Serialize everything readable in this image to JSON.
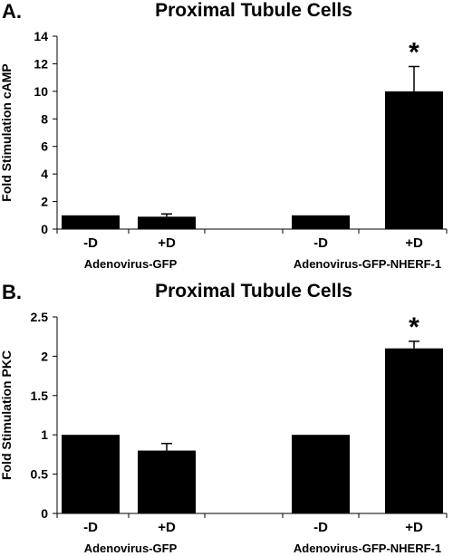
{
  "chart_data": [
    {
      "type": "bar",
      "panel_label": "A.",
      "title": "Proximal Tubule Cells",
      "ylabel": "Fold Stimulation cAMP",
      "xlabel": "",
      "ylim": [
        0,
        14
      ],
      "yticks": [
        "0",
        "2",
        "4",
        "6",
        "8",
        "10",
        "12",
        "14"
      ],
      "categories": [
        "-D",
        "+D",
        "-D",
        "+D"
      ],
      "groups": [
        {
          "label": "Adenovirus-GFP",
          "categories": [
            "-D",
            "+D"
          ]
        },
        {
          "label": "Adenovirus-GFP-NHERF-1",
          "categories": [
            "-D",
            "+D"
          ]
        }
      ],
      "values": [
        1.0,
        0.9,
        1.0,
        10.0
      ],
      "errors": [
        0,
        0.2,
        0,
        1.8
      ],
      "annotations": [
        "",
        "",
        "",
        "*"
      ],
      "bar_color": "#000000",
      "grid": false
    },
    {
      "type": "bar",
      "panel_label": "B.",
      "title": "Proximal Tubule Cells",
      "ylabel": "Fold Stimulation PKC",
      "xlabel": "",
      "ylim": [
        0,
        2.5
      ],
      "yticks": [
        "0",
        "0.5",
        "1",
        "1.5",
        "2",
        "2.5"
      ],
      "categories": [
        "-D",
        "+D",
        "-D",
        "+D"
      ],
      "groups": [
        {
          "label": "Adenovirus-GFP",
          "categories": [
            "-D",
            "+D"
          ]
        },
        {
          "label": "Adenovirus-GFP-NHERF-1",
          "categories": [
            "-D",
            "+D"
          ]
        }
      ],
      "values": [
        1.0,
        0.8,
        1.0,
        2.1
      ],
      "errors": [
        0,
        0.09,
        0,
        0.09
      ],
      "annotations": [
        "",
        "",
        "",
        "*"
      ],
      "bar_color": "#000000",
      "grid": false
    }
  ]
}
